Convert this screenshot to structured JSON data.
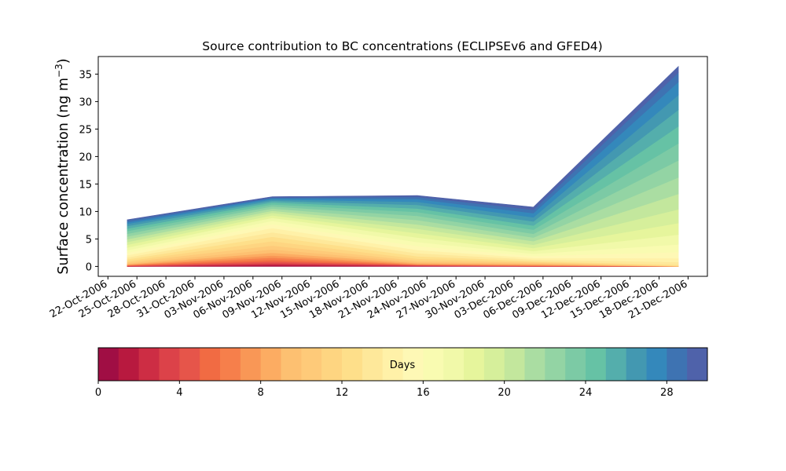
{
  "chart_data": {
    "type": "area",
    "title": "Source contribution to BC concentrations (ECLIPSEv6 and GFED4)",
    "ylabel": "Surface concentration (ng m",
    "ylabel_sup": "−3",
    "ylabel_close": ")",
    "xlabel": "",
    "ylim": [
      -1.8,
      38.2
    ],
    "yticks": [
      0,
      5,
      10,
      15,
      20,
      25,
      30,
      35
    ],
    "xlim": [
      "2006-10-21",
      "2006-12-23"
    ],
    "xticks": [
      "22-Oct-2006",
      "25-Oct-2006",
      "28-Oct-2006",
      "31-Oct-2006",
      "03-Nov-2006",
      "06-Nov-2006",
      "09-Nov-2006",
      "12-Nov-2006",
      "15-Nov-2006",
      "18-Nov-2006",
      "21-Nov-2006",
      "24-Nov-2006",
      "27-Nov-2006",
      "30-Nov-2006",
      "03-Dec-2006",
      "06-Dec-2006",
      "09-Dec-2006",
      "12-Dec-2006",
      "15-Dec-2006",
      "18-Dec-2006",
      "21-Dec-2006"
    ],
    "x": [
      "2006-10-24",
      "2006-11-08",
      "2006-11-23",
      "2006-12-05",
      "2006-12-20"
    ],
    "stack_totals": [
      [
        0.0,
        0.0,
        0.0,
        0.0,
        0.0
      ],
      [
        0.0,
        0.15,
        0.05,
        0.0,
        0.0
      ],
      [
        0.02,
        0.3,
        0.1,
        0.01,
        0.0
      ],
      [
        0.05,
        0.45,
        0.15,
        0.02,
        0.0
      ],
      [
        0.1,
        0.65,
        0.2,
        0.05,
        0.0
      ],
      [
        0.15,
        0.9,
        0.25,
        0.1,
        0.0
      ],
      [
        0.2,
        1.2,
        0.3,
        0.15,
        0.0
      ],
      [
        0.25,
        1.6,
        0.35,
        0.2,
        0.0
      ],
      [
        0.3,
        2.0,
        0.45,
        0.3,
        0.0
      ],
      [
        0.4,
        2.5,
        0.6,
        0.4,
        0.01
      ],
      [
        0.55,
        3.1,
        0.8,
        0.55,
        0.02
      ],
      [
        0.75,
        3.8,
        1.05,
        0.7,
        0.05
      ],
      [
        1.0,
        4.6,
        1.4,
        0.85,
        0.1
      ],
      [
        1.3,
        5.4,
        1.85,
        1.0,
        0.3
      ],
      [
        1.65,
        6.2,
        2.4,
        1.25,
        0.8
      ],
      [
        2.05,
        7.0,
        3.0,
        1.55,
        1.5
      ],
      [
        2.5,
        7.7,
        3.7,
        1.9,
        2.6
      ],
      [
        2.95,
        8.3,
        4.45,
        2.3,
        4.0
      ],
      [
        3.45,
        8.85,
        5.25,
        2.8,
        5.8
      ],
      [
        3.95,
        9.3,
        6.05,
        3.35,
        7.9
      ],
      [
        4.45,
        9.75,
        6.85,
        3.95,
        10.4
      ],
      [
        4.95,
        10.15,
        7.65,
        4.6,
        13.2
      ],
      [
        5.45,
        10.55,
        8.45,
        5.25,
        16.2
      ],
      [
        5.95,
        10.95,
        9.2,
        5.95,
        19.3
      ],
      [
        6.45,
        11.3,
        9.9,
        6.7,
        22.4
      ],
      [
        6.9,
        11.65,
        10.55,
        7.45,
        25.5
      ],
      [
        7.35,
        11.95,
        11.2,
        8.2,
        28.5
      ],
      [
        7.75,
        12.2,
        11.75,
        8.95,
        31.2
      ],
      [
        8.05,
        12.4,
        12.25,
        9.7,
        33.6
      ],
      [
        8.35,
        12.55,
        12.65,
        10.3,
        35.3
      ],
      [
        8.5,
        12.7,
        12.9,
        10.8,
        36.4
      ]
    ],
    "colorbar": {
      "label": "Days",
      "ticks": [
        0,
        4,
        8,
        12,
        16,
        20,
        24,
        28
      ],
      "range": [
        0,
        30
      ],
      "colors": [
        "#a00e44",
        "#b8193f",
        "#cd2d44",
        "#dc4249",
        "#e6554a",
        "#f16b43",
        "#f67f4b",
        "#f99756",
        "#fcac62",
        "#fdc071",
        "#feca79",
        "#fed581",
        "#fedf8a",
        "#fee89a",
        "#fff1a8",
        "#fef8b5",
        "#f9fbb1",
        "#f1f9a9",
        "#e6f59c",
        "#d6ef9b",
        "#c3e79d",
        "#aadda2",
        "#93d4a4",
        "#7ccaa5",
        "#66c2a5",
        "#54aeac",
        "#4398b1",
        "#3488bb",
        "#3e73b2",
        "#4f62aa"
      ]
    }
  }
}
